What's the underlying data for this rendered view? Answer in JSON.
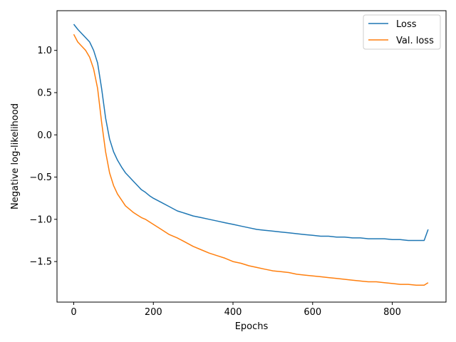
{
  "chart_data": {
    "type": "line",
    "xlabel": "Epochs",
    "ylabel": "Negative log-likelihood",
    "xlim": [
      -42,
      935
    ],
    "ylim": [
      -1.98,
      1.47
    ],
    "x_ticks": [
      0,
      200,
      400,
      600,
      800
    ],
    "x_tick_labels": [
      "0",
      "200",
      "400",
      "600",
      "800"
    ],
    "y_ticks": [
      1.0,
      0.5,
      0.0,
      -0.5,
      -1.0,
      -1.5
    ],
    "y_tick_labels": [
      "1.0",
      "0.5",
      "0.0",
      "−0.5",
      "−1.0",
      "−1.5"
    ],
    "grid": false,
    "legend_position": "top-right",
    "series": [
      {
        "name": "Loss",
        "color": "#1f77b4",
        "x": [
          0,
          10,
          20,
          30,
          40,
          50,
          60,
          70,
          80,
          90,
          100,
          110,
          120,
          130,
          140,
          150,
          160,
          170,
          180,
          190,
          200,
          220,
          240,
          260,
          280,
          300,
          320,
          340,
          360,
          380,
          400,
          420,
          440,
          460,
          480,
          500,
          520,
          540,
          560,
          580,
          600,
          620,
          640,
          660,
          680,
          700,
          720,
          740,
          760,
          780,
          800,
          820,
          840,
          860,
          880,
          890
        ],
        "y": [
          1.31,
          1.25,
          1.2,
          1.15,
          1.1,
          1.0,
          0.85,
          0.55,
          0.2,
          -0.05,
          -0.2,
          -0.3,
          -0.38,
          -0.45,
          -0.5,
          -0.55,
          -0.6,
          -0.65,
          -0.68,
          -0.72,
          -0.75,
          -0.8,
          -0.85,
          -0.9,
          -0.93,
          -0.96,
          -0.98,
          -1.0,
          -1.02,
          -1.04,
          -1.06,
          -1.08,
          -1.1,
          -1.12,
          -1.13,
          -1.14,
          -1.15,
          -1.16,
          -1.17,
          -1.18,
          -1.19,
          -1.2,
          -1.2,
          -1.21,
          -1.21,
          -1.22,
          -1.22,
          -1.23,
          -1.23,
          -1.23,
          -1.24,
          -1.24,
          -1.25,
          -1.25,
          -1.25,
          -1.12
        ]
      },
      {
        "name": "Val. loss",
        "color": "#ff7f0e",
        "x": [
          0,
          10,
          20,
          30,
          40,
          50,
          60,
          70,
          80,
          90,
          100,
          110,
          120,
          130,
          140,
          150,
          160,
          170,
          180,
          190,
          200,
          220,
          240,
          260,
          280,
          300,
          320,
          340,
          360,
          380,
          400,
          420,
          440,
          460,
          480,
          500,
          520,
          540,
          560,
          580,
          600,
          620,
          640,
          660,
          680,
          700,
          720,
          740,
          760,
          780,
          800,
          820,
          840,
          860,
          880,
          890
        ],
        "y": [
          1.19,
          1.1,
          1.05,
          1.0,
          0.92,
          0.78,
          0.55,
          0.15,
          -0.2,
          -0.45,
          -0.6,
          -0.7,
          -0.77,
          -0.84,
          -0.88,
          -0.92,
          -0.95,
          -0.98,
          -1.0,
          -1.03,
          -1.06,
          -1.12,
          -1.18,
          -1.22,
          -1.27,
          -1.32,
          -1.36,
          -1.4,
          -1.43,
          -1.46,
          -1.5,
          -1.52,
          -1.55,
          -1.57,
          -1.59,
          -1.61,
          -1.62,
          -1.63,
          -1.65,
          -1.66,
          -1.67,
          -1.68,
          -1.69,
          -1.7,
          -1.71,
          -1.72,
          -1.73,
          -1.74,
          -1.74,
          -1.75,
          -1.76,
          -1.77,
          -1.77,
          -1.78,
          -1.78,
          -1.75
        ]
      }
    ]
  }
}
